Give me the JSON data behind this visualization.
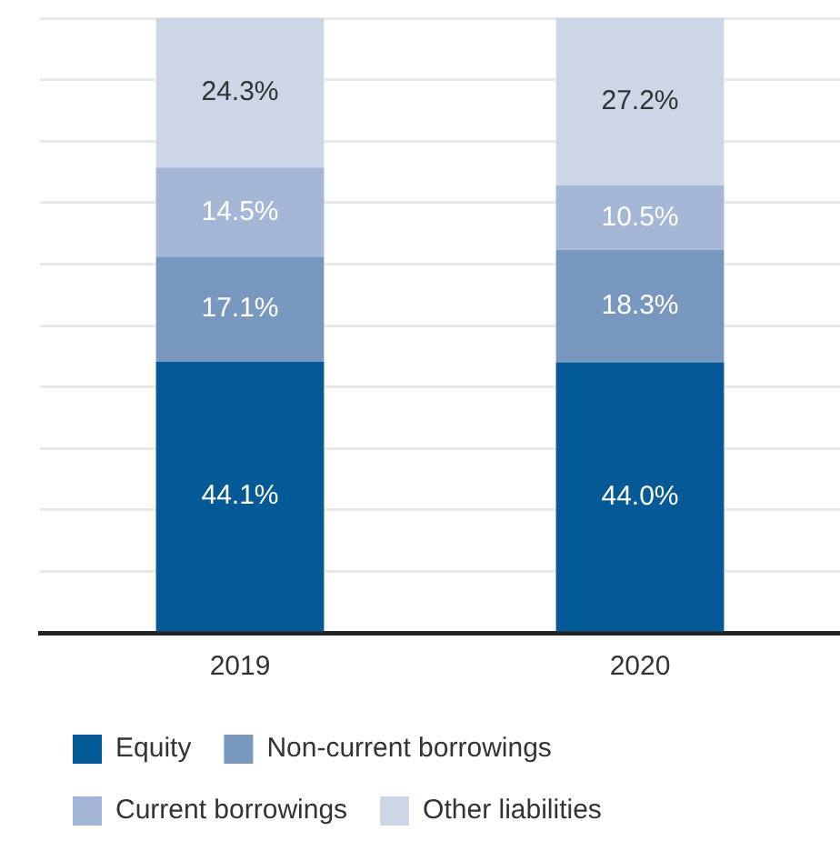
{
  "chart_data": {
    "type": "bar",
    "stacked": true,
    "categories": [
      "2019",
      "2020"
    ],
    "series": [
      {
        "name": "Equity",
        "color": "#035a96",
        "values": [
          44.1,
          44.0
        ],
        "value_labels": [
          "44.1%",
          "44.0%"
        ]
      },
      {
        "name": "Non-current borrowings",
        "color": "#7898c0",
        "values": [
          17.1,
          18.3
        ],
        "value_labels": [
          "17.1%",
          "18.3%"
        ]
      },
      {
        "name": "Current borrowings",
        "color": "#a5b7d6",
        "values": [
          14.5,
          10.5
        ],
        "value_labels": [
          "14.5%",
          "10.5%"
        ]
      },
      {
        "name": "Other liabilities",
        "color": "#cdd6e6",
        "values": [
          24.3,
          27.2
        ],
        "value_labels": [
          "24.3%",
          "27.2%"
        ]
      }
    ],
    "ylim": [
      0,
      100
    ],
    "yticks": [
      {
        "value": 0,
        "label": null
      },
      {
        "value": 10,
        "label": null
      },
      {
        "value": 20,
        "label": null
      },
      {
        "value": 30,
        "label": null
      },
      {
        "value": 40,
        "label": null
      },
      {
        "value": 50,
        "label": null
      },
      {
        "value": 60,
        "label": null
      },
      {
        "value": 70,
        "label": null
      },
      {
        "value": 80,
        "label": null
      },
      {
        "value": 90,
        "label": null
      },
      {
        "value": 100,
        "label": null
      }
    ],
    "tick_labels": "x",
    "grid": "y",
    "legend": "bottom"
  }
}
